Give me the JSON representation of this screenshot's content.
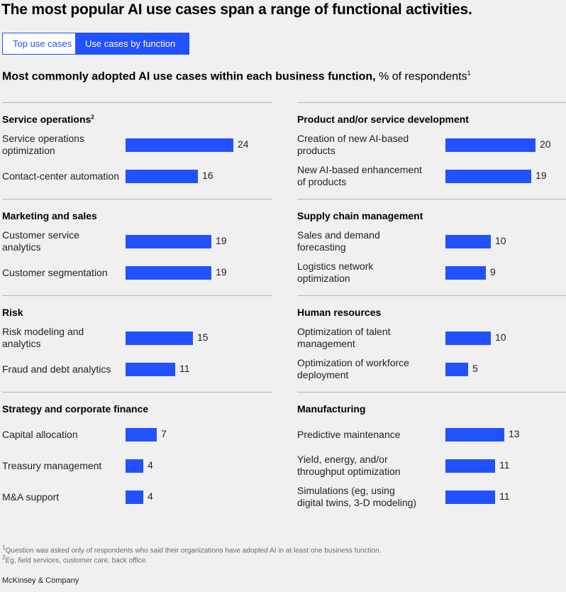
{
  "title": "The most popular AI use cases span a range of functional activities.",
  "tabs": [
    {
      "label": "Top use cases",
      "active": false
    },
    {
      "label": "Use cases by function",
      "active": true
    }
  ],
  "subtitle": {
    "bold": "Most commonly adopted AI use cases within each business function,",
    "normal": " % of respondents",
    "sup": "1"
  },
  "colors": {
    "bar": "#2251ff",
    "background": "#f0f0f0",
    "divider": "#b5b5b5"
  },
  "chart_data": [
    {
      "type": "bar",
      "title": "Service operations",
      "title_sup": "2",
      "categories": [
        "Service operations optimization",
        "Contact-center automation"
      ],
      "values": [
        24,
        16
      ]
    },
    {
      "type": "bar",
      "title": "Product and/or service development",
      "categories": [
        "Creation of new AI-based products",
        "New AI-based enhancement of products"
      ],
      "values": [
        20,
        19
      ]
    },
    {
      "type": "bar",
      "title": "Marketing and sales",
      "categories": [
        "Customer service analytics",
        "Customer segmentation"
      ],
      "values": [
        19,
        19
      ]
    },
    {
      "type": "bar",
      "title": "Supply chain management",
      "categories": [
        "Sales and demand forecasting",
        "Logistics network optimization"
      ],
      "values": [
        10,
        9
      ]
    },
    {
      "type": "bar",
      "title": "Risk",
      "categories": [
        "Risk modeling and analytics",
        "Fraud and debt analytics"
      ],
      "values": [
        15,
        11
      ]
    },
    {
      "type": "bar",
      "title": "Human resources",
      "categories": [
        "Optimization of talent management",
        "Optimization of workforce deployment"
      ],
      "values": [
        10,
        5
      ]
    },
    {
      "type": "bar",
      "title": "Strategy and corporate finance",
      "categories": [
        "Capital allocation",
        "Treasury management",
        "M&A support"
      ],
      "values": [
        7,
        4,
        4
      ]
    },
    {
      "type": "bar",
      "title": "Manufacturing",
      "categories": [
        "Predictive maintenance",
        "Yield, energy, and/or throughput optimization",
        "Simulations (eg, using digital twins, 3-D modeling)"
      ],
      "values": [
        13,
        11,
        11
      ]
    }
  ],
  "footnotes": [
    {
      "sup": "1",
      "text": "Question was asked only of respondents who said their organizations have adopted AI in at least one business function."
    },
    {
      "sup": "2",
      "text": "Eg, field services, customer care, back office."
    }
  ],
  "brand": "McKinsey & Company"
}
